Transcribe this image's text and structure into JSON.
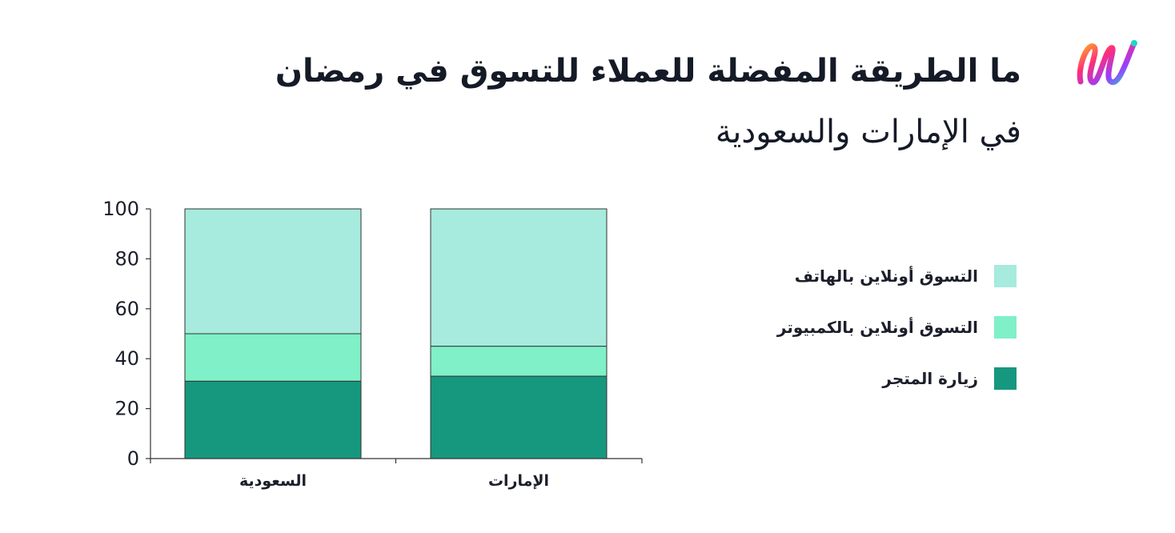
{
  "header": {
    "title": "ما الطريقة المفضلة للعملاء للتسوق في رمضان",
    "subtitle": "في الإمارات والسعودية",
    "logo_icon": "brand-swirl-logo"
  },
  "colors": {
    "store": "#16987e",
    "computer": "#7ff0c8",
    "phone": "#a6ebdd",
    "axis": "#333333",
    "logo_gradient": [
      "#ff2d78",
      "#9b3cff",
      "#1fd6c8",
      "#ffb020"
    ]
  },
  "chart_data": {
    "type": "bar",
    "stacked": true,
    "categories": [
      "السعودية",
      "الإمارات"
    ],
    "series": [
      {
        "name": "زيارة المتجر",
        "values": [
          31,
          33
        ],
        "color": "#16987e"
      },
      {
        "name": "التسوق أونلاين بالكمبيوتر",
        "values": [
          19,
          12
        ],
        "color": "#7ff0c8"
      },
      {
        "name": "التسوق أونلاين بالهاتف",
        "values": [
          50,
          55
        ],
        "color": "#a6ebdd"
      }
    ],
    "ylim": [
      0,
      100
    ],
    "yticks": [
      0,
      20,
      40,
      60,
      80,
      100
    ],
    "grid": false,
    "legend_position": "right",
    "legend_order": [
      "التسوق أونلاين بالهاتف",
      "التسوق أونلاين بالكمبيوتر",
      "زيارة المتجر"
    ]
  }
}
